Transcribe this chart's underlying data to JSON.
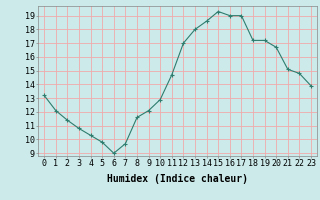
{
  "x": [
    0,
    1,
    2,
    3,
    4,
    5,
    6,
    7,
    8,
    9,
    10,
    11,
    12,
    13,
    14,
    15,
    16,
    17,
    18,
    19,
    20,
    21,
    22,
    23
  ],
  "y": [
    13.2,
    12.1,
    11.4,
    10.8,
    10.3,
    9.8,
    9.0,
    9.7,
    11.6,
    12.1,
    12.9,
    14.7,
    17.0,
    18.0,
    18.6,
    19.3,
    19.0,
    19.0,
    17.2,
    17.2,
    16.7,
    15.1,
    14.8,
    13.9
  ],
  "line_color": "#2e7d6e",
  "marker": "+",
  "marker_size": 3,
  "marker_linewidth": 0.8,
  "bg_color": "#cceaea",
  "grid_color": "#f0aaaa",
  "xlabel": "Humidex (Indice chaleur)",
  "xlabel_fontsize": 7,
  "tick_fontsize": 6,
  "xlim": [
    -0.5,
    23.5
  ],
  "ylim": [
    8.8,
    19.7
  ],
  "yticks": [
    9,
    10,
    11,
    12,
    13,
    14,
    15,
    16,
    17,
    18,
    19
  ],
  "xticks": [
    0,
    1,
    2,
    3,
    4,
    5,
    6,
    7,
    8,
    9,
    10,
    11,
    12,
    13,
    14,
    15,
    16,
    17,
    18,
    19,
    20,
    21,
    22,
    23
  ],
  "xtick_labels": [
    "0",
    "1",
    "2",
    "3",
    "4",
    "5",
    "6",
    "7",
    "8",
    "9",
    "10",
    "11",
    "12",
    "13",
    "14",
    "15",
    "16",
    "17",
    "18",
    "19",
    "20",
    "21",
    "22",
    "23"
  ]
}
